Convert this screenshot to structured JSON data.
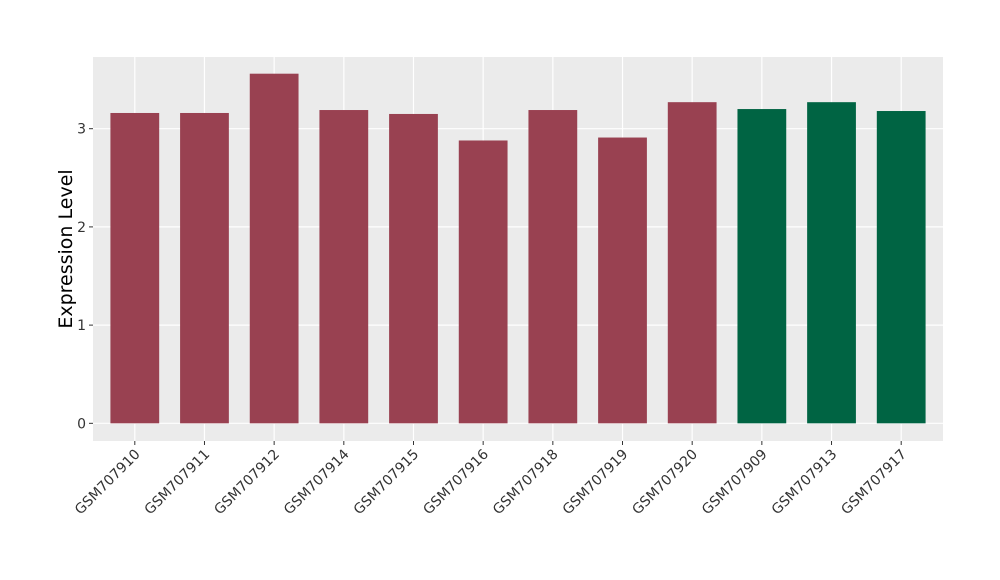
{
  "chart_data": {
    "type": "bar",
    "y_label": "Expression Level",
    "categories": [
      "GSM707910",
      "GSM707911",
      "GSM707912",
      "GSM707914",
      "GSM707915",
      "GSM707916",
      "GSM707918",
      "GSM707919",
      "GSM707920",
      "GSM707909",
      "GSM707913",
      "GSM707917"
    ],
    "values": [
      3.16,
      3.16,
      3.56,
      3.19,
      3.15,
      2.88,
      3.19,
      2.91,
      3.27,
      3.2,
      3.27,
      3.18
    ],
    "colors": [
      "#994151",
      "#994151",
      "#994151",
      "#994151",
      "#994151",
      "#994151",
      "#994151",
      "#994151",
      "#994151",
      "#006443",
      "#006443",
      "#006443"
    ],
    "ylim": [
      -0.18,
      3.73
    ],
    "yticks": [
      0,
      1,
      2,
      3
    ],
    "grid": true
  }
}
